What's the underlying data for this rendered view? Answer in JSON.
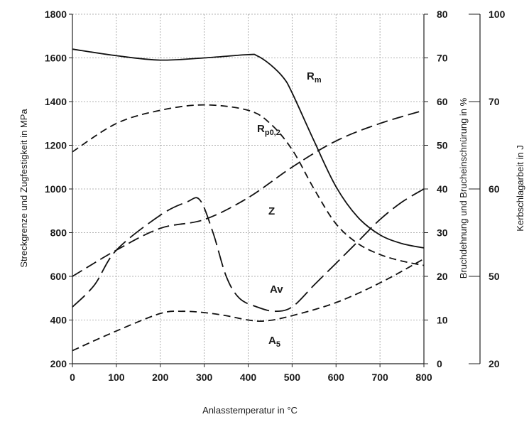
{
  "chart_data": {
    "type": "line",
    "xlabel": "Anlasstemperatur in °C",
    "ylabel_left": "Streckgrenze und Zugfestigkeit in MPa",
    "ylabel_right1": "Bruchdehnung und Brucheinschnürung in %",
    "ylabel_right2": "Kerbschlagarbeit in J",
    "x_ticks": [
      "0",
      "100",
      "200",
      "300",
      "400",
      "500",
      "600",
      "700",
      "800"
    ],
    "y_left_ticks": [
      "200",
      "400",
      "600",
      "800",
      "1000",
      "1200",
      "1400",
      "1600",
      "1800"
    ],
    "y_right1_ticks": [
      "0",
      "10",
      "20",
      "30",
      "40",
      "50",
      "60",
      "70",
      "80"
    ],
    "y_right2_ticks": [
      "20",
      "50",
      "60",
      "70",
      "100"
    ],
    "xlim": [
      0,
      800
    ],
    "ylim_left": [
      200,
      1800
    ],
    "ylim_right1": [
      0,
      80
    ],
    "grid": true,
    "series": [
      {
        "name": "Rm",
        "label_main": "R",
        "label_sub": "m",
        "axis": "left",
        "dash": "solid",
        "x": [
          0,
          100,
          200,
          300,
          400,
          420,
          450,
          480,
          500,
          550,
          600,
          650,
          700,
          750,
          800
        ],
        "y": [
          1640,
          1610,
          1590,
          1600,
          1615,
          1610,
          1570,
          1510,
          1440,
          1220,
          1010,
          870,
          790,
          750,
          730
        ]
      },
      {
        "name": "Rp0,2",
        "label_main": "R",
        "label_sub": "p0,2",
        "axis": "left",
        "dash": "dash",
        "x": [
          0,
          100,
          200,
          300,
          400,
          450,
          500,
          550,
          600,
          650,
          700,
          750,
          800
        ],
        "y": [
          1170,
          1300,
          1360,
          1385,
          1360,
          1300,
          1180,
          1000,
          840,
          750,
          700,
          670,
          650
        ]
      },
      {
        "name": "Z",
        "label_main": "Z",
        "label_sub": "",
        "axis": "right1",
        "dash": "longdash",
        "x": [
          0,
          100,
          200,
          300,
          400,
          500,
          600,
          700,
          800
        ],
        "y": [
          20,
          26,
          31,
          33,
          38,
          45,
          51,
          55,
          58
        ]
      },
      {
        "name": "Av",
        "label_main": "Av",
        "label_sub": "",
        "axis": "right1",
        "dash": "verylongdash",
        "x": [
          0,
          50,
          100,
          200,
          260,
          290,
          320,
          350,
          380,
          420,
          460,
          500,
          550,
          600,
          650,
          700,
          750,
          800
        ],
        "y": [
          13,
          18,
          26,
          34,
          37,
          37.5,
          30,
          20,
          15,
          13,
          12,
          13,
          18,
          23,
          28,
          33,
          37,
          40
        ]
      },
      {
        "name": "A5",
        "label_main": "A",
        "label_sub": "5",
        "axis": "right1",
        "dash": "dash",
        "x": [
          0,
          100,
          200,
          250,
          300,
          350,
          400,
          440,
          500,
          600,
          700,
          800
        ],
        "y": [
          3,
          7.5,
          11.5,
          12,
          11.7,
          11,
          10,
          9.8,
          11,
          14,
          18.5,
          24
        ]
      }
    ]
  }
}
